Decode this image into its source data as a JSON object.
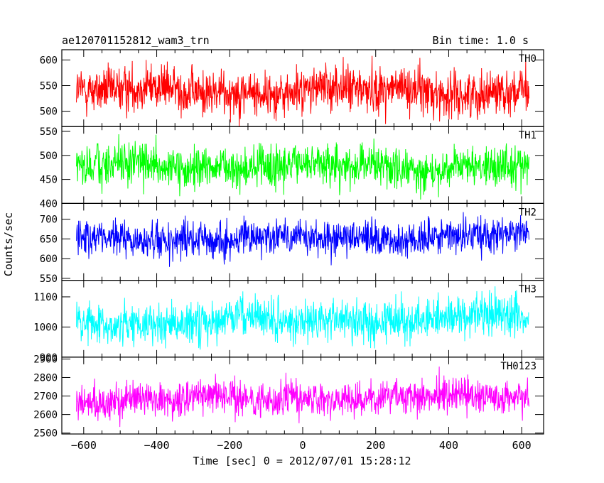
{
  "header": {
    "title": "ae120701152812_wam3_trn",
    "bin_time": "Bin time: 1.0 s"
  },
  "chart_data": {
    "type": "line",
    "x": {
      "start": -620,
      "end": 620,
      "step": 1.0
    },
    "xlim": [
      -660,
      660
    ],
    "xticks": [
      -600,
      -400,
      -200,
      0,
      200,
      400,
      600
    ],
    "xtick_labels": [
      "−600",
      "−400",
      "−200",
      "0",
      "200",
      "400",
      "600"
    ],
    "xlabel": "Time [sec] 0 = 2012/07/01 15:28:12",
    "ylabel": "Counts/sec",
    "grid": false,
    "series": [
      {
        "name": "TH0",
        "color": "#ff0000",
        "ylim": [
          470,
          620
        ],
        "yticks": [
          500,
          550,
          600
        ],
        "ytick_labels": [
          "500",
          "550",
          "600"
        ],
        "mean": 540,
        "noise": 25,
        "trend": 0,
        "values": []
      },
      {
        "name": "TH1",
        "color": "#00ff00",
        "ylim": [
          400,
          560
        ],
        "yticks": [
          400,
          450,
          500,
          550
        ],
        "ytick_labels": [
          "400",
          "450",
          "500",
          "550"
        ],
        "mean": 476,
        "noise": 24,
        "trend": 0,
        "values": []
      },
      {
        "name": "TH2",
        "color": "#0000ff",
        "ylim": [
          545,
          740
        ],
        "yticks": [
          550,
          600,
          650,
          700
        ],
        "ytick_labels": [
          "550",
          "600",
          "650",
          "700"
        ],
        "mean": 652,
        "noise": 25,
        "trend": 10,
        "values": []
      },
      {
        "name": "TH3",
        "color": "#00ffff",
        "ylim": [
          900,
          1155
        ],
        "yticks": [
          900,
          1000,
          1100
        ],
        "ytick_labels": [
          "900",
          "1000",
          "1100"
        ],
        "mean": 1022,
        "noise": 38,
        "trend": 20,
        "values": []
      },
      {
        "name": "TH0123",
        "color": "#ff00ff",
        "ylim": [
          2495,
          2910
        ],
        "yticks": [
          2500,
          2600,
          2700,
          2800,
          2900
        ],
        "ytick_labels": [
          "2500",
          "2600",
          "2700",
          "2800",
          "2900"
        ],
        "mean": 2688,
        "noise": 52,
        "trend": 30,
        "values": []
      }
    ]
  }
}
